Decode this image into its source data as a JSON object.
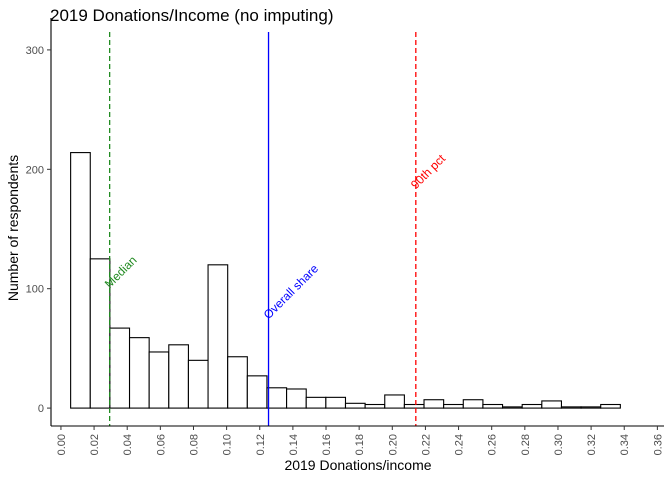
{
  "chart_data": {
    "type": "bar",
    "title": "2019 Donations/Income (no imputing)",
    "xlabel": "2019 Donations/income",
    "ylabel": "Number of respondents",
    "xlim": [
      -0.006,
      0.364
    ],
    "ylim": [
      -15,
      315
    ],
    "x_ticks": [
      0.0,
      0.02,
      0.04,
      0.06,
      0.08,
      0.1,
      0.12,
      0.14,
      0.16,
      0.18,
      0.2,
      0.22,
      0.24,
      0.26,
      0.28,
      0.3,
      0.32,
      0.34,
      0.36
    ],
    "x_tick_labels": [
      "0.00",
      "0.02",
      "0.04",
      "0.06",
      "0.08",
      "0.10",
      "0.12",
      "0.14",
      "0.16",
      "0.18",
      "0.20",
      "0.22",
      "0.24",
      "0.26",
      "0.28",
      "0.30",
      "0.32",
      "0.34",
      "0.36"
    ],
    "y_ticks": [
      0,
      100,
      200,
      300
    ],
    "y_tick_labels": [
      "0",
      "100",
      "200",
      "300"
    ],
    "grid": false,
    "bin_start": 0.00585,
    "bin_width": 0.01185,
    "counts": [
      214,
      125,
      67,
      59,
      47,
      53,
      40,
      120,
      43,
      27,
      17,
      16,
      9,
      9,
      4,
      3,
      11,
      3,
      7,
      3,
      7,
      3,
      1,
      3,
      6,
      1,
      1,
      3
    ],
    "reference_lines": [
      {
        "name": "median-line",
        "x": 0.0294,
        "color": "#228b22",
        "style": "dashed",
        "label": "Median",
        "label_y": 100
      },
      {
        "name": "overall-share-line",
        "x": 0.1253,
        "color": "#0000ff",
        "style": "solid",
        "label": "Overall share",
        "label_y": 74
      },
      {
        "name": "90th-pct-line",
        "x": 0.2142,
        "color": "#ff0000",
        "style": "dashed",
        "label": "90th pct",
        "label_y": 183
      }
    ],
    "colors": {
      "bar_fill": "#ffffff",
      "bar_stroke": "#000000",
      "axis": "#000000",
      "tick_text": "#4d4d4d"
    }
  }
}
